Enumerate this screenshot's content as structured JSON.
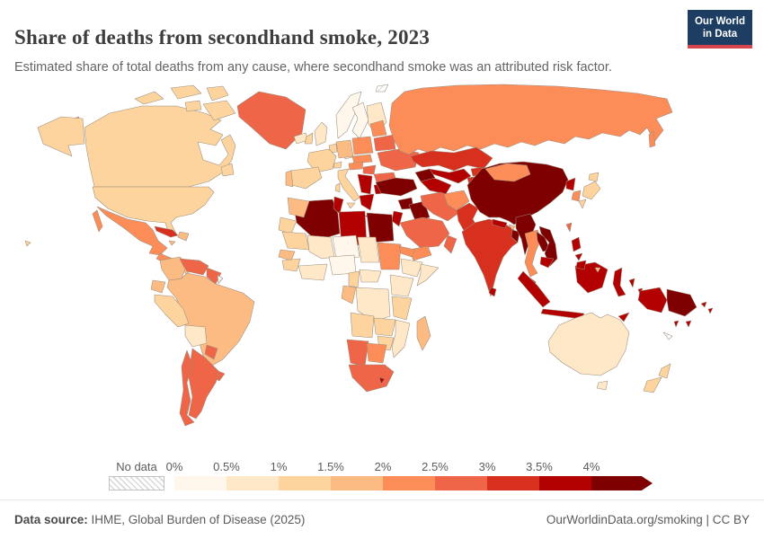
{
  "header": {
    "title": "Share of deaths from secondhand smoke, 2023",
    "subtitle": "Estimated share of total deaths from any cause, where secondhand smoke was an attributed risk factor.",
    "logo_line1": "Our World",
    "logo_line2": "in Data",
    "logo_bg": "#1d3d63",
    "logo_accent": "#d8444e"
  },
  "footer": {
    "source_label": "Data source:",
    "source_text": " IHME, Global Burden of Disease (2025)",
    "license_text": "OurWorldinData.org/smoking | CC BY"
  },
  "chart_data": {
    "type": "choropleth",
    "title": "Share of deaths from secondhand smoke, 2023",
    "subtitle": "Estimated share of total deaths from any cause, where secondhand smoke was an attributed risk factor.",
    "unit": "%",
    "legend": {
      "no_data_label": "No data",
      "ticks": [
        "0%",
        "0.5%",
        "1%",
        "1.5%",
        "2%",
        "2.5%",
        "3%",
        "3.5%",
        "4%"
      ],
      "palette": [
        "#fff7ec",
        "#fee8c8",
        "#fdd49e",
        "#fdbb84",
        "#fc8d59",
        "#ef6548",
        "#d7301f",
        "#b30000",
        "#7f0000"
      ],
      "bucket_labels": [
        "0–0.5%",
        "0.5–1%",
        "1–1.5%",
        "1.5–2%",
        "2–2.5%",
        "2.5–3%",
        "3–3.5%",
        "3.5–4%",
        "4%+"
      ],
      "no_data_fill": "hatched"
    },
    "regions": {
      "wrap-chukotka": 5,
      "alaska": 3,
      "canada": 3,
      "arctic-islands": 3,
      "newfoundland": 3,
      "greenland": 6,
      "iceland": 2,
      "usa": 3,
      "hawaii": 3,
      "mexico": 5,
      "central-america": 5,
      "panama": 4,
      "cuba": 7,
      "hispaniola": 4,
      "jamaica": 4,
      "colombia": 4,
      "venezuela": 6,
      "guianas": 6,
      "french-guiana": 0,
      "ecuador": 4,
      "peru": 3,
      "bolivia": 2,
      "brazil": 4,
      "paraguay": 6,
      "uruguay": 6,
      "argentina": 6,
      "chile": 6,
      "norway": 1,
      "sweden": 1,
      "finland": 2,
      "denmark": 2,
      "uk": 2,
      "ireland": 3,
      "benelux": 3,
      "germany": 4,
      "france": 3,
      "spain": 3,
      "portugal": 4,
      "italy": 3,
      "switzerland": 3,
      "czechia-slovakia": 5,
      "austria": 5,
      "hungary": 6,
      "poland": 5,
      "baltics": 5,
      "belarus": 6,
      "ukraine": 6,
      "romania": 6,
      "balkans": 8,
      "bulgaria": 8,
      "greece": 8,
      "russia": 5,
      "svalbard": 0,
      "kazakhstan": 7,
      "uzbekistan": 8,
      "turkmenistan": 8,
      "kyrgyzstan": 7,
      "tajikistan": 7,
      "caucasus": 9,
      "turkey": 9,
      "syria": 9,
      "iraq": 9,
      "jordan-israel": 8,
      "saudi-arabia": 6,
      "yemen": 5,
      "oman": 6,
      "iran": 6,
      "afghanistan": 5,
      "pakistan": 7,
      "india": 7,
      "nepal": 8,
      "bhutan": 4,
      "bangladesh": 9,
      "sri-lanka": 8,
      "china": 9,
      "mongolia": 5,
      "north-korea": 8,
      "south-korea": 5,
      "japan": 3,
      "taiwan": 6,
      "myanmar": 9,
      "thailand": 5,
      "laos": 9,
      "vietnam": 9,
      "cambodia": 8,
      "malaysia": 8,
      "sumatra": 8,
      "java": 8,
      "borneo": 8,
      "brunei": 4,
      "sulawesi": 8,
      "lesser-sunda": 8,
      "maluku": 8,
      "philippines": 8,
      "west-papua": 8,
      "papua-new-guinea": 9,
      "solomon-islands": 8,
      "vanuatu": 8,
      "new-caledonia": 0,
      "fiji": 8,
      "morocco": 4,
      "western-sahara": 3,
      "algeria": 9,
      "tunisia": 8,
      "libya": 8,
      "egypt": 9,
      "mauritania": 3,
      "mali": 2,
      "niger": 1,
      "chad": 2,
      "sudan": 5,
      "eritrea": 5,
      "ethiopia": 2,
      "somalia": 2,
      "senegal": 4,
      "guinea": 3,
      "ivory-coast-ghana": 2,
      "nigeria": 1,
      "cameroon": 3,
      "central-african-republic": 2,
      "gabon-congo": 4,
      "drc": 2,
      "uganda-kenya": 2,
      "tanzania": 3,
      "angola": 3,
      "zambia": 3,
      "zimbabwe": 3,
      "mozambique": 2,
      "namibia": 6,
      "botswana": 5,
      "south-africa": 6,
      "lesotho": 8,
      "madagascar": 4,
      "australia": 2,
      "new-zealand": 3
    }
  }
}
